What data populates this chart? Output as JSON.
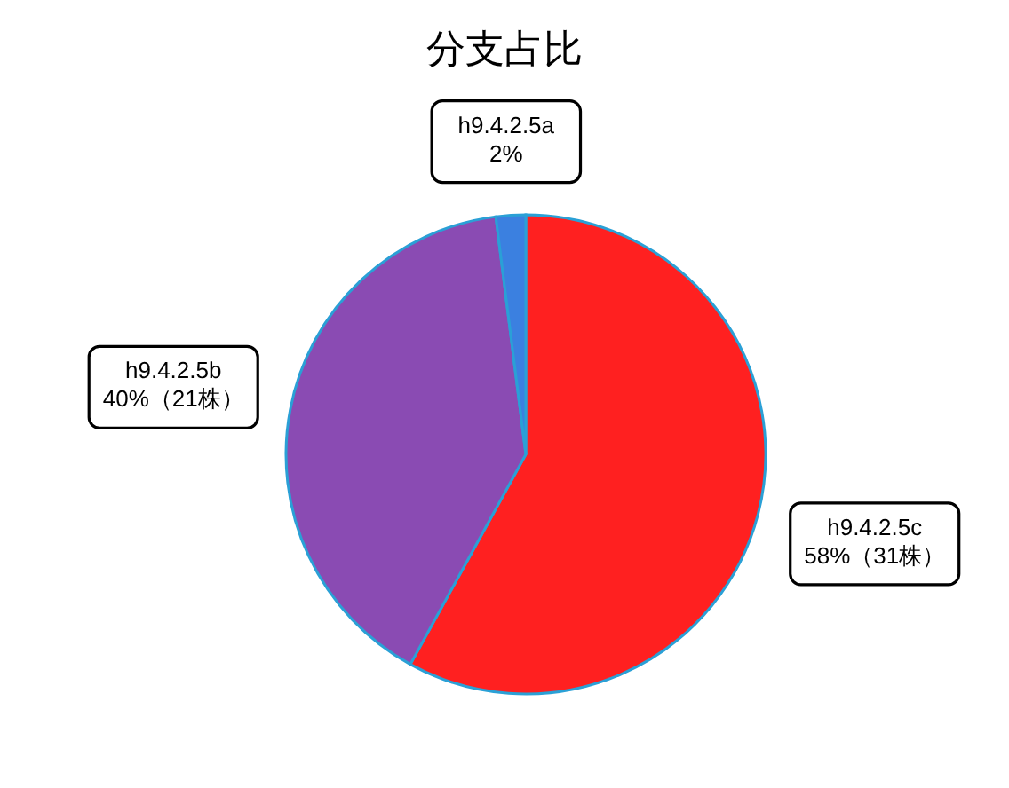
{
  "chart_data": {
    "type": "pie",
    "title": "分支占比",
    "categories": [
      "h9.4.2.5c",
      "h9.4.2.5b",
      "h9.4.2.5a"
    ],
    "values": [
      58,
      40,
      2
    ],
    "colors": [
      "#ff2020",
      "#8a4bb3",
      "#3b80e0"
    ],
    "value_labels": [
      "58%（31株）",
      "40%（21株）",
      "2%"
    ]
  }
}
